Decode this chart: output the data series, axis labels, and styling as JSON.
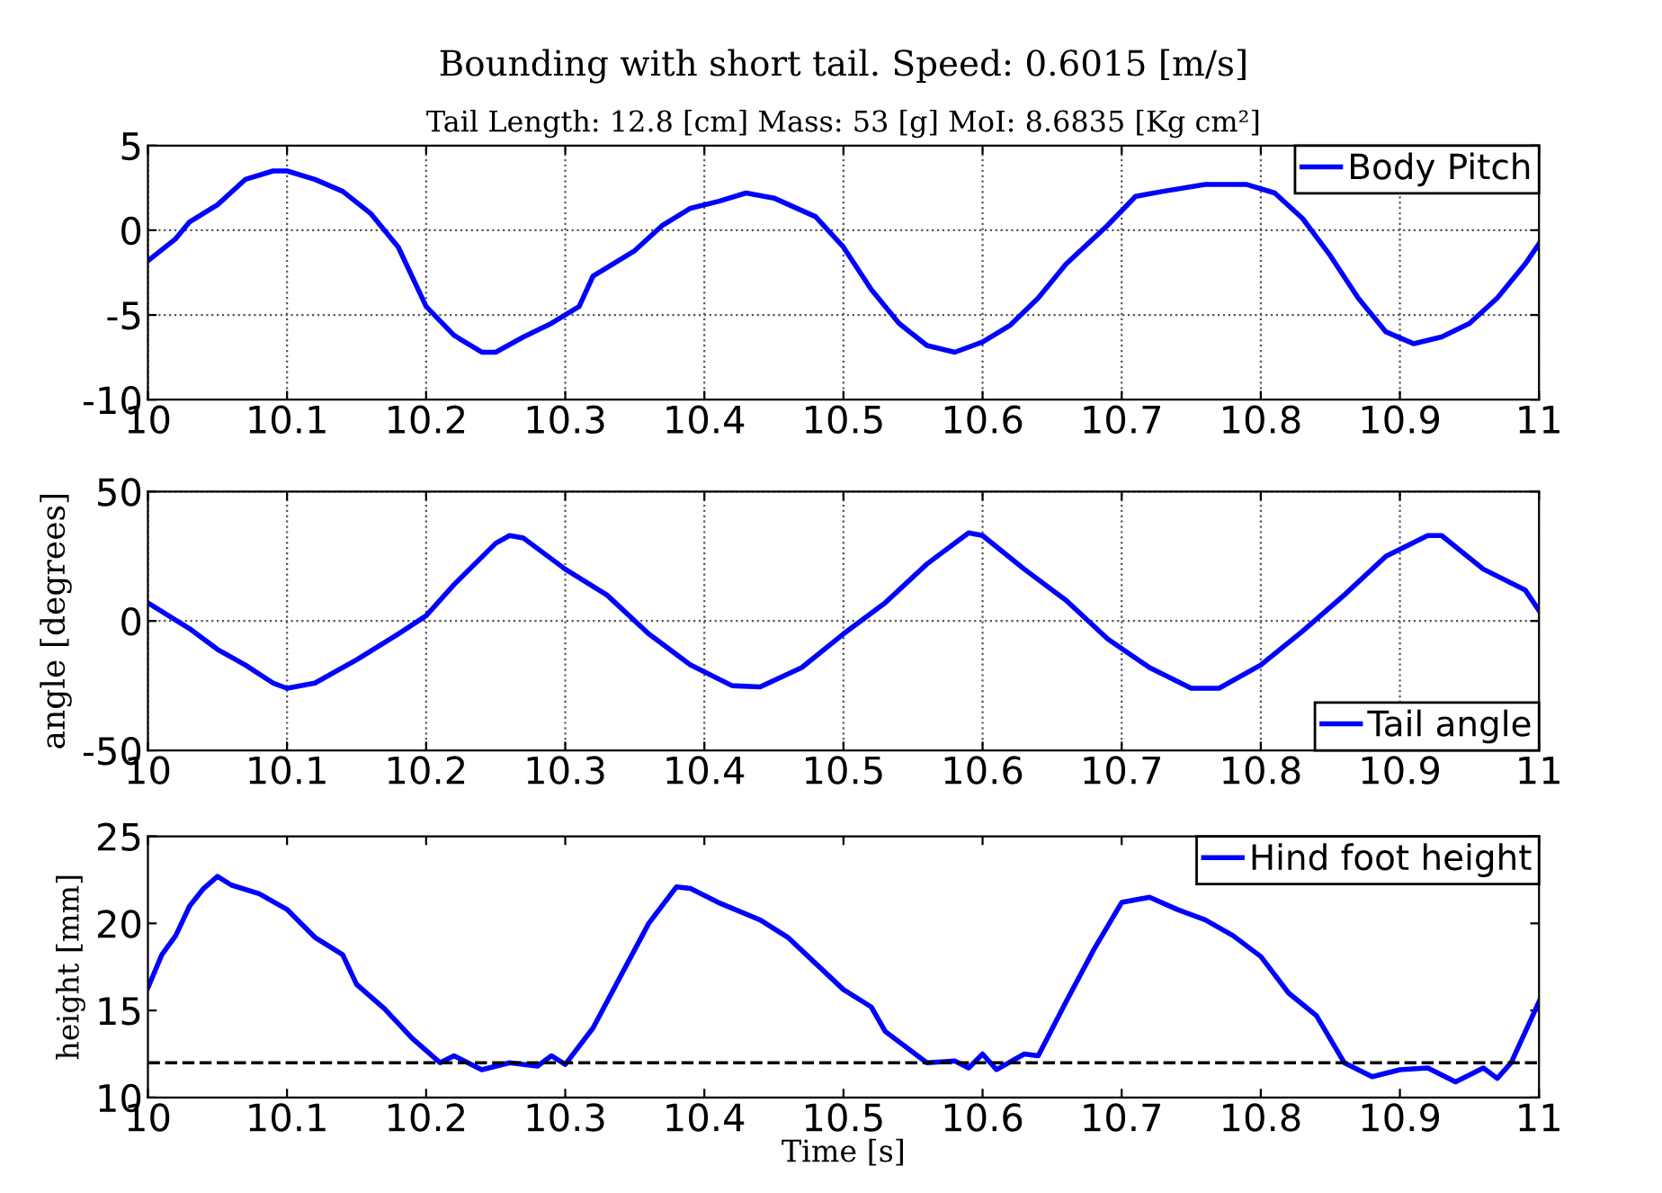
{
  "chart_data": [
    {
      "type": "line",
      "title": "Bounding with short tail. Speed: 0.6015 [m/s]",
      "subtitle": "Tail Length: 12.8 [cm] Mass: 53 [g] MoI: 8.6835 [Kg cm²]",
      "xlim": [
        10,
        11
      ],
      "xticks": [
        10,
        10.1,
        10.2,
        10.3,
        10.4,
        10.5,
        10.6,
        10.7,
        10.8,
        10.9,
        11
      ],
      "ylim": [
        -10,
        5
      ],
      "yticks": [
        -10,
        -5,
        0,
        5
      ],
      "grid": true,
      "legend": "top right",
      "marker": "none",
      "line_style": "solid",
      "series": [
        {
          "name": "Body Pitch",
          "color": "#0000ff",
          "x": [
            10,
            10.02,
            10.03,
            10.05,
            10.07,
            10.09,
            10.1,
            10.12,
            10.14,
            10.16,
            10.18,
            10.2,
            10.22,
            10.24,
            10.25,
            10.27,
            10.29,
            10.31,
            10.32,
            10.35,
            10.37,
            10.39,
            10.41,
            10.43,
            10.45,
            10.48,
            10.5,
            10.52,
            10.54,
            10.56,
            10.58,
            10.6,
            10.62,
            10.64,
            10.66,
            10.69,
            10.71,
            10.73,
            10.76,
            10.79,
            10.81,
            10.83,
            10.85,
            10.87,
            10.89,
            10.91,
            10.93,
            10.95,
            10.97,
            10.99,
            11
          ],
          "values": [
            -1.8,
            -0.5,
            0.5,
            1.5,
            3,
            3.5,
            3.5,
            3,
            2.3,
            1,
            -1,
            -4.5,
            -6.2,
            -7.2,
            -7.2,
            -6.3,
            -5.5,
            -4.5,
            -2.7,
            -1.2,
            0.3,
            1.3,
            1.7,
            2.2,
            1.9,
            0.8,
            -1,
            -3.5,
            -5.5,
            -6.8,
            -7.2,
            -6.6,
            -5.6,
            -4,
            -2,
            0.3,
            2,
            2.3,
            2.7,
            2.7,
            2.2,
            0.7,
            -1.5,
            -4,
            -6,
            -6.7,
            -6.3,
            -5.5,
            -4,
            -2,
            -0.8
          ]
        }
      ]
    },
    {
      "type": "line",
      "ylabel": "angle [degrees]",
      "xlim": [
        10,
        11
      ],
      "xticks": [
        10,
        10.1,
        10.2,
        10.3,
        10.4,
        10.5,
        10.6,
        10.7,
        10.8,
        10.9,
        11
      ],
      "ylim": [
        -50,
        50
      ],
      "yticks": [
        -50,
        0,
        50
      ],
      "grid": true,
      "legend": "bottom right",
      "marker": "none",
      "line_style": "solid",
      "series": [
        {
          "name": "Tail angle",
          "color": "#0000ff",
          "x": [
            10,
            10.03,
            10.05,
            10.07,
            10.09,
            10.1,
            10.12,
            10.15,
            10.18,
            10.2,
            10.22,
            10.25,
            10.26,
            10.27,
            10.3,
            10.33,
            10.36,
            10.39,
            10.42,
            10.44,
            10.47,
            10.5,
            10.53,
            10.56,
            10.59,
            10.6,
            10.63,
            10.66,
            10.69,
            10.72,
            10.75,
            10.77,
            10.8,
            10.83,
            10.86,
            10.89,
            10.92,
            10.93,
            10.96,
            10.99,
            11
          ],
          "values": [
            7,
            -3,
            -11,
            -17,
            -24,
            -26,
            -24,
            -15,
            -5,
            2,
            14,
            30,
            33,
            32,
            20,
            10,
            -5,
            -17,
            -25,
            -25.5,
            -18,
            -5,
            7,
            22,
            34,
            33,
            20,
            8,
            -7,
            -18,
            -26,
            -26,
            -17,
            -4,
            10,
            25,
            33,
            33,
            20,
            12,
            4
          ]
        }
      ]
    },
    {
      "type": "line",
      "xlabel": "Time [s]",
      "ylabel": "height [mm]",
      "xlim": [
        10,
        11
      ],
      "xticks": [
        10,
        10.1,
        10.2,
        10.3,
        10.4,
        10.5,
        10.6,
        10.7,
        10.8,
        10.9,
        11
      ],
      "ylim": [
        10,
        25
      ],
      "yticks": [
        10,
        15,
        20,
        25
      ],
      "legend": "top right",
      "marker": "none",
      "line_style": "solid",
      "ref_lines": [
        {
          "axis": "y",
          "value": 12,
          "label": null,
          "color": "#000000",
          "line_style": "dashed"
        }
      ],
      "series": [
        {
          "name": "Hind foot height",
          "color": "#0000ff",
          "x": [
            10,
            10.01,
            10.02,
            10.03,
            10.04,
            10.05,
            10.06,
            10.08,
            10.1,
            10.12,
            10.14,
            10.15,
            10.17,
            10.19,
            10.21,
            10.22,
            10.24,
            10.26,
            10.28,
            10.29,
            10.3,
            10.32,
            10.34,
            10.36,
            10.38,
            10.39,
            10.41,
            10.44,
            10.46,
            10.48,
            10.5,
            10.52,
            10.53,
            10.56,
            10.58,
            10.59,
            10.6,
            10.61,
            10.63,
            10.64,
            10.66,
            10.68,
            10.7,
            10.72,
            10.74,
            10.76,
            10.78,
            10.8,
            10.82,
            10.84,
            10.86,
            10.88,
            10.9,
            10.92,
            10.94,
            10.96,
            10.97,
            10.98,
            11
          ],
          "values": [
            16.3,
            18.2,
            19.3,
            21,
            22,
            22.7,
            22.2,
            21.7,
            20.8,
            19.2,
            18.2,
            16.5,
            15.1,
            13.4,
            12.0,
            12.4,
            11.6,
            12.0,
            11.8,
            12.4,
            11.9,
            14,
            17,
            20,
            22.1,
            22.0,
            21.2,
            20.2,
            19.2,
            17.7,
            16.2,
            15.2,
            13.8,
            12.0,
            12.1,
            11.7,
            12.5,
            11.6,
            12.5,
            12.4,
            15.5,
            18.5,
            21.2,
            21.5,
            20.8,
            20.2,
            19.3,
            18.1,
            16.0,
            14.7,
            12.0,
            11.2,
            11.6,
            11.7,
            10.9,
            11.7,
            11.1,
            12.0,
            15.5
          ]
        }
      ]
    }
  ]
}
